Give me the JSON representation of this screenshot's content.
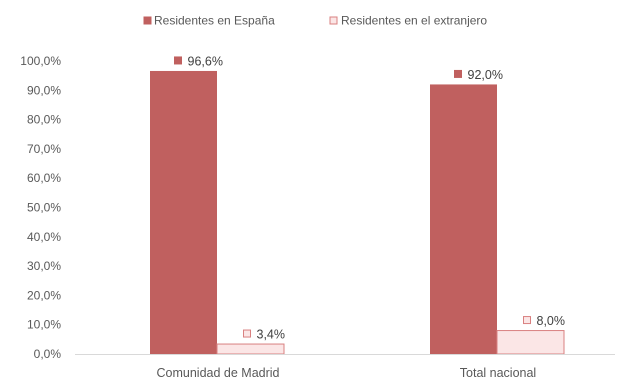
{
  "chart_data": {
    "type": "bar",
    "categories": [
      "Comunidad de Madrid",
      "Total nacional"
    ],
    "series": [
      {
        "name": "Residentes en España",
        "values": [
          96.6,
          92.0
        ],
        "labels": [
          "96,6%",
          "92,0%"
        ],
        "color": "#c0605f",
        "border": "#c0605f"
      },
      {
        "name": "Residentes en el extranjero",
        "values": [
          3.4,
          8.0
        ],
        "labels": [
          "3,4%",
          "8,0%"
        ],
        "color": "#fbe6e6",
        "border": "#d98080"
      }
    ],
    "y_ticks": [
      "0,0%",
      "10,0%",
      "20,0%",
      "30,0%",
      "40,0%",
      "50,0%",
      "60,0%",
      "70,0%",
      "80,0%",
      "90,0%",
      "100,0%"
    ],
    "ylim": [
      0,
      100
    ],
    "grid": false,
    "legend_position": "top",
    "title": "",
    "xlabel": "",
    "ylabel": ""
  }
}
